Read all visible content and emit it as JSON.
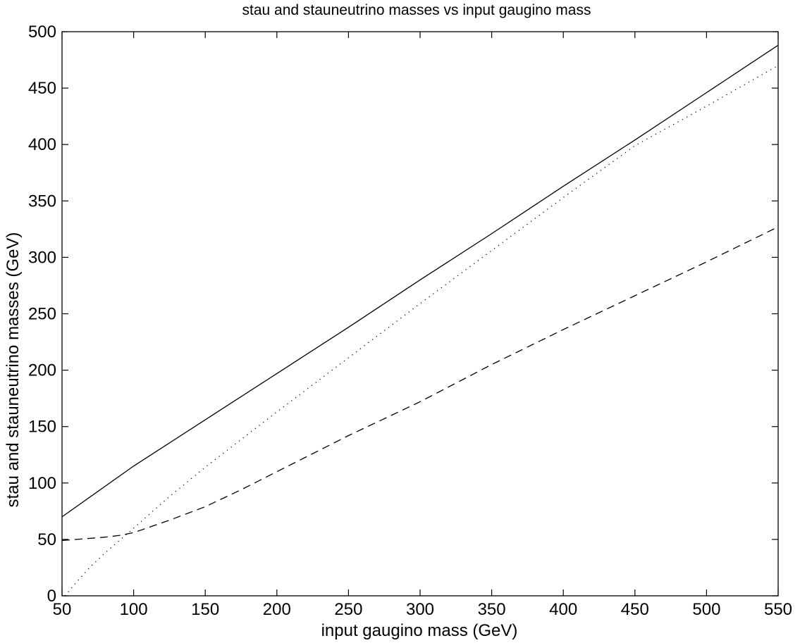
{
  "chart_data": {
    "type": "line",
    "title": "stau and stauneutrino masses vs input gaugino mass",
    "xlabel": "input gaugino mass (GeV)",
    "ylabel": "stau and stauneutrino masses (GeV)",
    "xlim": [
      50,
      550
    ],
    "ylim": [
      0,
      500
    ],
    "xticks": [
      50,
      100,
      150,
      200,
      250,
      300,
      350,
      400,
      450,
      500,
      550
    ],
    "yticks": [
      0,
      50,
      100,
      150,
      200,
      250,
      300,
      350,
      400,
      450,
      500
    ],
    "grid": false,
    "legend": "none",
    "series": [
      {
        "style": "solid",
        "color": "#000000",
        "x": [
          50,
          100,
          150,
          200,
          250,
          300,
          350,
          400,
          450,
          500,
          550
        ],
        "y": [
          70,
          115,
          156,
          197,
          238,
          280,
          321,
          363,
          404,
          446,
          488
        ]
      },
      {
        "style": "dotted",
        "color": "#000000",
        "x": [
          52,
          60,
          70,
          80,
          90,
          100,
          125,
          150,
          200,
          250,
          300,
          350,
          400,
          450,
          500,
          550
        ],
        "y": [
          0,
          12,
          26,
          38,
          49,
          60,
          88,
          114,
          163,
          211,
          259,
          306,
          353,
          399,
          434,
          470
        ]
      },
      {
        "style": "dashed",
        "color": "#000000",
        "x": [
          50,
          60,
          70,
          80,
          90,
          100,
          125,
          150,
          175,
          200,
          250,
          300,
          350,
          400,
          450,
          500,
          550
        ],
        "y": [
          49,
          50,
          51,
          52,
          53.5,
          56,
          67,
          79,
          94,
          110,
          142,
          172,
          205,
          236,
          266,
          296,
          327
        ]
      }
    ]
  }
}
